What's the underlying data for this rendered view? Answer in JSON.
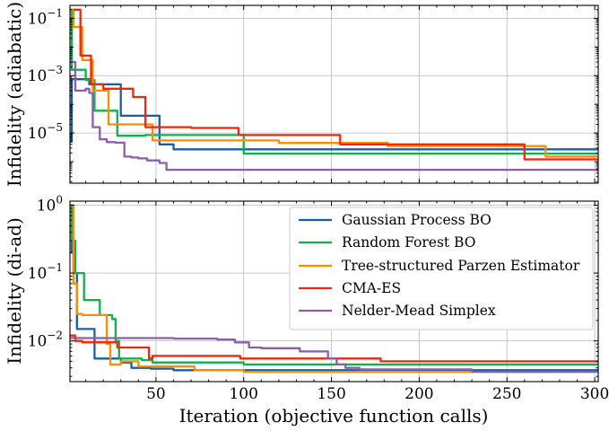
{
  "chart_data": [
    {
      "type": "line",
      "panel": "top",
      "ylabel": "Infidelity (adiabatic)",
      "xlabel": "",
      "xlim": [
        1,
        302
      ],
      "ylim_log10": [
        -6.75,
        -0.55
      ],
      "yscale": "log",
      "yticks": [
        {
          "log10": -1,
          "base": "10",
          "exp": "−1"
        },
        {
          "log10": -3,
          "base": "10",
          "exp": "−3"
        },
        {
          "log10": -5,
          "base": "10",
          "exp": "−5"
        }
      ],
      "xticks": [
        50,
        100,
        150,
        200,
        250,
        300
      ],
      "grid": true,
      "series": [
        {
          "name": "Gaussian Process BO",
          "color": "#1560a8",
          "x": [
            1,
            2,
            2,
            12,
            12,
            30,
            30,
            52,
            52,
            60,
            60,
            302
          ],
          "y": [
            5e-06,
            5e-06,
            0.00075,
            0.00075,
            0.0005,
            0.0005,
            4e-05,
            4e-05,
            4e-06,
            4e-06,
            2.7e-06,
            2.7e-06
          ]
        },
        {
          "name": "Random Forest BO",
          "color": "#0db34a",
          "x": [
            1,
            2,
            2,
            10,
            10,
            15,
            15,
            28,
            28,
            44,
            44,
            100,
            100,
            302
          ],
          "y": [
            0.2,
            0.2,
            0.0016,
            0.0016,
            0.0007,
            0.0007,
            6e-05,
            6e-05,
            8e-06,
            8e-06,
            8.5e-06,
            8.5e-06,
            1.9e-06,
            1.9e-06
          ]
        },
        {
          "name": "Tree-structured Parzen Estimator",
          "color": "#ff8c00",
          "x": [
            1,
            3,
            3,
            8,
            8,
            14,
            14,
            23,
            23,
            48,
            48,
            120,
            120,
            182,
            182,
            272,
            272,
            302
          ],
          "y": [
            0.2,
            0.2,
            0.05,
            0.05,
            0.0035,
            0.0035,
            0.0003,
            0.0003,
            2e-05,
            2e-05,
            5.5e-06,
            5.5e-06,
            4.5e-06,
            4.5e-06,
            3.5e-06,
            3.5e-06,
            1.5e-06,
            1.5e-06
          ]
        },
        {
          "name": "CMA-ES",
          "color": "#f2260a",
          "x": [
            3,
            7,
            7,
            13,
            13,
            20,
            20,
            37,
            37,
            44,
            44,
            70,
            70,
            97,
            97,
            155,
            155,
            260,
            260,
            302
          ],
          "y": [
            0.2,
            0.2,
            0.005,
            0.005,
            0.0005,
            0.0005,
            0.00035,
            0.00035,
            0.00018,
            0.00018,
            1.6e-05,
            1.6e-05,
            1.5e-05,
            1.5e-05,
            8.5e-06,
            8.5e-06,
            4e-06,
            4e-06,
            1.2e-06,
            1.2e-06
          ]
        },
        {
          "name": "Nelder-Mead Simplex",
          "color": "#8a5ea8",
          "x": [
            1,
            4,
            4,
            7,
            7,
            10,
            10,
            12,
            12,
            14,
            14,
            18,
            18,
            22,
            22,
            27,
            27,
            32,
            32,
            36,
            36,
            40,
            40,
            45,
            45,
            52,
            52,
            56,
            56,
            302
          ],
          "y": [
            0.003,
            0.003,
            0.0003,
            0.0003,
            0.0003,
            0.0003,
            0.00035,
            0.00035,
            0.00025,
            0.00025,
            1.6e-05,
            1.6e-05,
            6e-06,
            6e-06,
            4.8e-06,
            4.8e-06,
            4.6e-06,
            4.6e-06,
            1.5e-06,
            1.5e-06,
            1.4e-06,
            1.4e-06,
            1.3e-06,
            1.3e-06,
            1.1e-06,
            1.1e-06,
            9e-07,
            9e-07,
            5.2e-07,
            5.2e-07
          ]
        }
      ]
    },
    {
      "type": "line",
      "panel": "bottom",
      "ylabel": "Infidelity (di-ad)",
      "xlabel": "Iteration (objective function calls)",
      "xlim": [
        1,
        302
      ],
      "ylim_log10": [
        -2.6,
        0.06
      ],
      "yscale": "log",
      "yticks": [
        {
          "log10": 0,
          "base": "10",
          "exp": "0"
        },
        {
          "log10": -1,
          "base": "10",
          "exp": "−1"
        },
        {
          "log10": -2,
          "base": "10",
          "exp": "−2"
        }
      ],
      "xticks": [
        50,
        100,
        150,
        200,
        250,
        300
      ],
      "xticklabels": [
        "50",
        "100",
        "150",
        "200",
        "250",
        "300"
      ],
      "grid": true,
      "legend": "top-right",
      "series": [
        {
          "name": "Gaussian Process BO",
          "color": "#1560a8",
          "x": [
            1,
            2,
            2,
            3,
            3,
            5,
            5,
            15,
            15,
            30,
            30,
            36,
            36,
            47,
            47,
            60,
            60,
            302
          ],
          "y": [
            1.0,
            1.0,
            0.2,
            0.2,
            0.1,
            0.1,
            0.015,
            0.015,
            0.0055,
            0.0055,
            0.0048,
            0.0048,
            0.004,
            0.004,
            0.0039,
            0.0039,
            0.0037,
            0.0037
          ]
        },
        {
          "name": "Random Forest BO",
          "color": "#0db34a",
          "x": [
            1,
            2,
            2,
            4,
            4,
            9,
            9,
            18,
            18,
            25,
            25,
            27,
            27,
            29,
            29,
            42,
            42,
            48,
            48,
            100,
            100,
            302
          ],
          "y": [
            1.0,
            1.0,
            0.3,
            0.3,
            0.1,
            0.1,
            0.04,
            0.04,
            0.024,
            0.024,
            0.021,
            0.021,
            0.01,
            0.01,
            0.0055,
            0.0055,
            0.0052,
            0.0052,
            0.0048,
            0.0048,
            0.0045,
            0.0045
          ]
        },
        {
          "name": "Tree-structured Parzen Estimator",
          "color": "#ff8c00",
          "x": [
            1,
            3,
            3,
            5,
            5,
            8,
            8,
            22,
            22,
            24,
            24,
            30,
            30,
            40,
            40,
            72,
            72,
            100,
            100,
            300
          ],
          "y": [
            1.0,
            1.0,
            0.07,
            0.07,
            0.025,
            0.025,
            0.024,
            0.024,
            0.009,
            0.009,
            0.0045,
            0.0045,
            0.005,
            0.005,
            0.0042,
            0.0042,
            0.0037,
            0.0037,
            0.0035,
            0.0035
          ]
        },
        {
          "name": "CMA-ES",
          "color": "#f2260a",
          "x": [
            1,
            4,
            4,
            8,
            8,
            28,
            28,
            46,
            46,
            48,
            48,
            98,
            98,
            178,
            178,
            302
          ],
          "y": [
            0.012,
            0.012,
            0.01,
            0.01,
            0.0095,
            0.0095,
            0.008,
            0.008,
            0.0055,
            0.0055,
            0.006,
            0.006,
            0.0055,
            0.0055,
            0.005,
            0.005
          ]
        },
        {
          "name": "Nelder-Mead Simplex",
          "color": "#8a5ea8",
          "x": [
            1,
            60,
            60,
            85,
            85,
            95,
            95,
            103,
            103,
            110,
            110,
            132,
            132,
            148,
            148,
            153,
            153,
            158,
            158,
            166,
            166,
            230,
            230,
            302
          ],
          "y": [
            0.011,
            0.011,
            0.0108,
            0.0108,
            0.0105,
            0.0105,
            0.0095,
            0.0095,
            0.008,
            0.008,
            0.0078,
            0.0078,
            0.007,
            0.007,
            0.0055,
            0.0055,
            0.0045,
            0.0045,
            0.004,
            0.004,
            0.0038,
            0.0038,
            0.0035,
            0.0035
          ]
        }
      ]
    }
  ]
}
